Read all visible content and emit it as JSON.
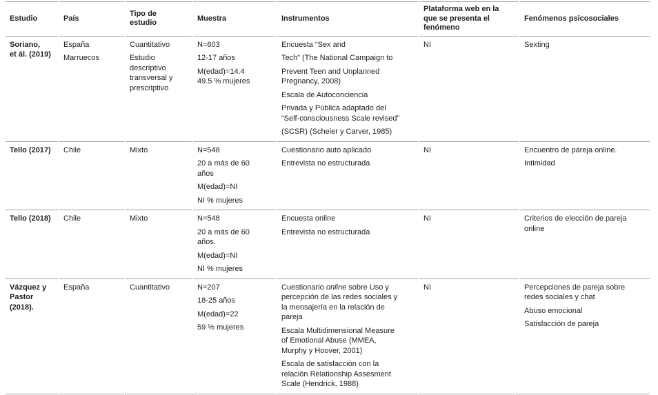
{
  "colors": {
    "border": "#9e9e9e",
    "text": "#1f1f1f",
    "background": "#ffffff"
  },
  "table": {
    "columns": [
      {
        "id": "estudio",
        "label": "Estudio"
      },
      {
        "id": "pais",
        "label": "País"
      },
      {
        "id": "tipo",
        "label": "Tipo de\nestudio"
      },
      {
        "id": "muestra",
        "label": "Muestra"
      },
      {
        "id": "instrumentos",
        "label": "Instrumentos"
      },
      {
        "id": "plataforma",
        "label": "Plataforma web en la\nque se presenta el\nfenómeno"
      },
      {
        "id": "fenomenos",
        "label": "Fenómenos psicosociales"
      }
    ],
    "rows": [
      {
        "estudio": [
          "Soriano,\net ál. (2019)"
        ],
        "pais": [
          "España",
          "Marruecos"
        ],
        "tipo": [
          "Cuantitativo",
          "Estudio\ndescriptivo\ntransversal y\nprescriptivo"
        ],
        "muestra": [
          "N=603",
          "12-17 años",
          "M(edad)=14.4\n49.5 % mujeres"
        ],
        "instrumentos": [
          "Encuesta “Sex and",
          "Tech” (The National Campaign to",
          "Prevent Teen and Unplanned\nPregnancy, 2008)",
          "Escala de Autoconciencia",
          "Privada y Pública adaptado del\n“Self-consciousness Scale revised”",
          "(SCSR) (Scheier y Carver, 1985)"
        ],
        "plataforma": [
          "NI"
        ],
        "fenomenos": [
          "Sexting"
        ]
      },
      {
        "estudio": [
          "Tello (2017)"
        ],
        "pais": [
          "Chile"
        ],
        "tipo": [
          "Mixto"
        ],
        "muestra": [
          "N=548",
          "20 a más de 60\naños",
          "M(edad)=NI",
          "NI % mujeres"
        ],
        "instrumentos": [
          "Cuestionario auto aplicado",
          "Entrevista no estructurada"
        ],
        "plataforma": [
          "NI"
        ],
        "fenomenos": [
          "Encuentro de pareja online.",
          "Intimidad"
        ]
      },
      {
        "estudio": [
          "Tello (2018)"
        ],
        "pais": [
          "Chile"
        ],
        "tipo": [
          "Mixto"
        ],
        "muestra": [
          "N=548",
          "20 a más de 60\naños.",
          "M(edad)=NI",
          "NI % mujeres"
        ],
        "instrumentos": [
          "Encuesta online",
          "Entrevista no estructurada"
        ],
        "plataforma": [
          "NI"
        ],
        "fenomenos": [
          "Criterios de elección de pareja\nonline"
        ]
      },
      {
        "estudio": [
          "Vázquez y\nPastor\n(2018)."
        ],
        "pais": [
          "España"
        ],
        "tipo": [
          "Cuantitativo"
        ],
        "muestra": [
          "N=207",
          "18-25 años",
          "M(edad)=22",
          "59 % mujeres"
        ],
        "instrumentos": [
          {
            "runs": [
              {
                "text": "Cuestionario "
              },
              {
                "text": "online",
                "italic": true
              },
              {
                "text": " sobre Uso y\npercepción de las redes sociales y\nla mensajería en la relación de\npareja"
              }
            ]
          },
          "Escala Multidimensional Measure\nof Emotional Abuse (MMEA,\nMurphy y Hoover, 2001)",
          "Escala de satisfacción con la\nrelación Relationship Assesment\nScale (Hendrick, 1988)"
        ],
        "plataforma": [
          "NI"
        ],
        "fenomenos": [
          "Percepciones de pareja sobre\nredes sociales y chat",
          "Abuso emocional",
          "Satisfacción de pareja"
        ]
      }
    ]
  }
}
